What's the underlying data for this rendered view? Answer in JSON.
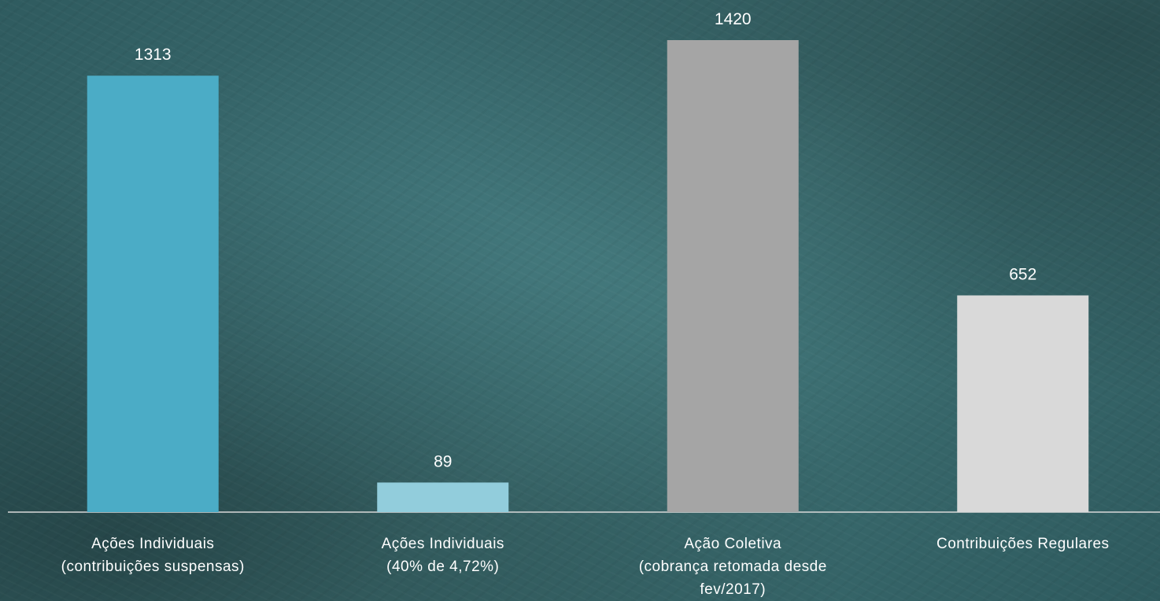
{
  "chart_data": {
    "type": "bar",
    "categories": [
      [
        "Ações Individuais",
        "(contribuições suspensas)"
      ],
      [
        "Ações Individuais",
        "(40% de 4,72%)"
      ],
      [
        "Ação Coletiva",
        "(cobrança retomada desde",
        "fev/2017)"
      ],
      [
        "Contribuições Regulares"
      ]
    ],
    "values": [
      1313,
      89,
      1420,
      652
    ],
    "value_labels": [
      "1313",
      "89",
      "1420",
      "652"
    ],
    "bar_colors": [
      "#4bacc6",
      "#92cddc",
      "#a5a5a5",
      "#d9d9d9"
    ],
    "ylim": [
      0,
      1420
    ],
    "grid": false,
    "legend": "none",
    "axis_color": "#d9d9d9",
    "text_color": "#ffffff"
  }
}
